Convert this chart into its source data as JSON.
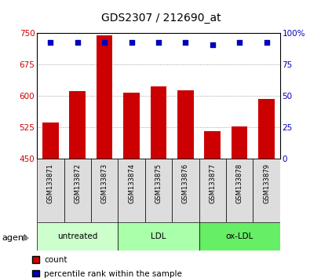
{
  "title": "GDS2307 / 212690_at",
  "samples": [
    "GSM133871",
    "GSM133872",
    "GSM133873",
    "GSM133874",
    "GSM133875",
    "GSM133876",
    "GSM133877",
    "GSM133878",
    "GSM133879"
  ],
  "counts": [
    537,
    612,
    746,
    607,
    622,
    613,
    515,
    526,
    592
  ],
  "percentile_ranks": [
    93,
    93,
    93,
    93,
    93,
    93,
    91,
    93,
    93
  ],
  "ylim_left": [
    450,
    750
  ],
  "ylim_right": [
    0,
    100
  ],
  "yticks_left": [
    450,
    525,
    600,
    675,
    750
  ],
  "yticks_right": [
    0,
    25,
    50,
    75,
    100
  ],
  "bar_color": "#cc0000",
  "dot_color": "#0000bb",
  "groups": [
    {
      "label": "untreated",
      "start": 0,
      "end": 3,
      "color": "#ccffcc"
    },
    {
      "label": "LDL",
      "start": 3,
      "end": 6,
      "color": "#aaffaa"
    },
    {
      "label": "ox-LDL",
      "start": 6,
      "end": 9,
      "color": "#66dd66"
    }
  ],
  "legend_count_label": "count",
  "legend_percentile_label": "percentile rank within the sample",
  "sample_bg": "#dddddd",
  "plot_bg": "#ffffff",
  "grid_color": "#888888"
}
